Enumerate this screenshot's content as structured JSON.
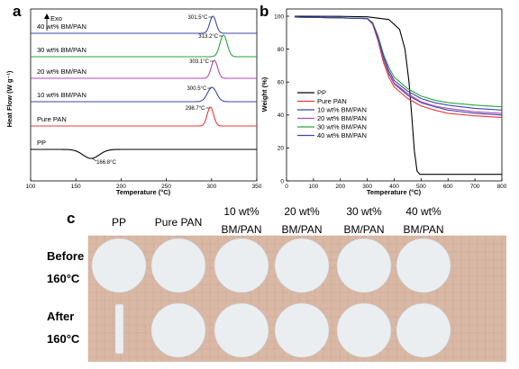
{
  "panels": {
    "a": "a",
    "b": "b",
    "c": "c"
  },
  "chart_data": [
    {
      "type": "line",
      "panel": "a",
      "xlabel": "Temperature (°C)",
      "ylabel": "Heat Flow (W g⁻¹)",
      "exo_label": "Exo",
      "xlim": [
        100,
        350
      ],
      "xticks": [
        100,
        150,
        200,
        250,
        300,
        350
      ],
      "series": [
        {
          "name": "PP",
          "color": "#000000",
          "peak_x": 166.8,
          "peak_label": "166.8°C",
          "direction": "down",
          "width": 9,
          "amp": 0.35
        },
        {
          "name": "Pure PAN",
          "color": "#e8383a",
          "peak_x": 298.7,
          "peak_label": "298.7°C",
          "direction": "up",
          "width": 3.5,
          "amp": 1.0
        },
        {
          "name": "10 wt% BM/PAN",
          "color": "#3b46a8",
          "peak_x": 300.5,
          "peak_label": "300.5°C",
          "direction": "up",
          "width": 5,
          "amp": 0.75
        },
        {
          "name": "20 wt% BM/PAN",
          "color": "#b24bb3",
          "peak_x": 303.1,
          "peak_label": "303.1°C",
          "direction": "up",
          "width": 3.5,
          "amp": 0.95
        },
        {
          "name": "30 wt% BM/PAN",
          "color": "#2ba342",
          "peak_x": 313.2,
          "peak_label": "313.2°C",
          "direction": "up",
          "width": 4,
          "amp": 0.8
        },
        {
          "name": "40 wt% BM/PAN",
          "color": "#3b46a8",
          "peak_x": 301.5,
          "peak_label": "301.5°C",
          "direction": "up",
          "width": 3.5,
          "amp": 0.9
        }
      ]
    },
    {
      "type": "line",
      "panel": "b",
      "xlabel": "Temperature (°C)",
      "ylabel": "Weight (%)",
      "xlim": [
        0,
        800
      ],
      "ylim": [
        0,
        100
      ],
      "xticks": [
        0,
        100,
        200,
        300,
        400,
        500,
        600,
        700,
        800
      ],
      "yticks": [
        0,
        20,
        40,
        60,
        80,
        100
      ],
      "series": [
        {
          "name": "PP",
          "color": "#000000",
          "x": [
            30,
            200,
            300,
            380,
            420,
            440,
            455,
            465,
            475,
            485,
            495,
            800
          ],
          "y": [
            100,
            99.9,
            99.6,
            98,
            92,
            80,
            60,
            40,
            18,
            6,
            4,
            4
          ]
        },
        {
          "name": "Pure PAN",
          "color": "#e8383a",
          "x": [
            30,
            200,
            300,
            320,
            340,
            360,
            380,
            400,
            450,
            500,
            550,
            600,
            700,
            800
          ],
          "y": [
            99.5,
            99,
            98.5,
            95,
            85,
            72,
            63,
            57,
            50,
            45.5,
            43,
            41,
            39.5,
            38.5
          ]
        },
        {
          "name": "10 wt% BM/PAN",
          "color": "#3b46a8",
          "x": [
            30,
            200,
            300,
            320,
            340,
            360,
            380,
            400,
            450,
            500,
            550,
            600,
            700,
            800
          ],
          "y": [
            99.5,
            99,
            98.5,
            95.5,
            86,
            74,
            65,
            59,
            52,
            47.5,
            45,
            43,
            41,
            40
          ]
        },
        {
          "name": "20 wt% BM/PAN",
          "color": "#b24bb3",
          "x": [
            30,
            200,
            300,
            320,
            340,
            360,
            380,
            400,
            450,
            500,
            550,
            600,
            700,
            800
          ],
          "y": [
            99.5,
            99,
            98.5,
            95.5,
            86,
            74,
            65.5,
            59.5,
            53,
            48,
            45.5,
            44,
            42,
            41
          ]
        },
        {
          "name": "30 wt% BM/PAN",
          "color": "#2ba342",
          "x": [
            30,
            200,
            300,
            320,
            340,
            360,
            380,
            400,
            450,
            500,
            550,
            600,
            700,
            800
          ],
          "y": [
            99.5,
            99,
            98.6,
            96,
            88,
            77,
            69,
            63,
            56,
            51.5,
            49,
            47.5,
            46,
            45
          ]
        },
        {
          "name": "40 wt% BM/PAN",
          "color": "#3b46a8",
          "x": [
            30,
            200,
            300,
            320,
            340,
            360,
            380,
            400,
            450,
            500,
            550,
            600,
            700,
            800
          ],
          "y": [
            99.5,
            99,
            98.6,
            96,
            87,
            75.5,
            67,
            61,
            54.5,
            50,
            47.5,
            46,
            44,
            43
          ]
        }
      ]
    }
  ],
  "photo": {
    "columns": [
      "PP",
      "Pure PAN",
      "10 wt%\nBM/PAN",
      "20 wt%\nBM/PAN",
      "30 wt%\nBM/PAN",
      "40 wt%\nBM/PAN"
    ],
    "rows": [
      "Before\n160°C",
      "After\n160°C"
    ],
    "background": "#d9b9a6",
    "grid_color": "#c99f8a",
    "sample_color": "#eaeef1"
  }
}
